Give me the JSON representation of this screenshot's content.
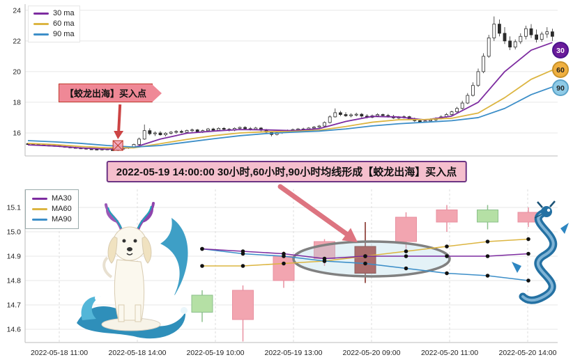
{
  "banner": {
    "text": "2022-05-19 14:00:00 30小时,60小时,90小时均线形成【蛟龙出海】买入点",
    "bg": "#f5bfcd",
    "border": "#6c3483",
    "arrow_color": "#dd7480"
  },
  "chart_data": [
    {
      "type": "candlestick",
      "title": "",
      "xlabel": "",
      "ylabel": "",
      "ylim": [
        14.5,
        24.4
      ],
      "y_ticks": [
        24,
        22,
        20,
        18,
        16
      ],
      "legend": [
        {
          "label": "30 ma",
          "color": "#7d2ca0"
        },
        {
          "label": "60 ma",
          "color": "#dcb541"
        },
        {
          "label": "90 ma",
          "color": "#3c8ec8"
        }
      ],
      "badges": [
        {
          "label": "30",
          "bg": "#6a1b9a",
          "fg": "#ffffff",
          "border": "#4a148c"
        },
        {
          "label": "60",
          "bg": "#f0b040",
          "fg": "#222222",
          "border": "#c8922a"
        },
        {
          "label": "90",
          "bg": "#8ecae6",
          "fg": "#222222",
          "border": "#5ba3c9"
        }
      ],
      "callout": {
        "label": "【蛟龙出海】买入点",
        "bg": "#ef8896",
        "border": "#c0392b",
        "arrow_color": "#cc4444"
      },
      "buy_marker_index": 17,
      "colors": {
        "ma30": "#7d2ca0",
        "ma60": "#dcb541",
        "ma90": "#3c8ec8",
        "candle": "#2b2b2b"
      },
      "ma_step": 5,
      "ma30": [
        15.22,
        15.15,
        15.02,
        14.94,
        15.05,
        15.6,
        15.98,
        16.12,
        16.22,
        16.2,
        16.15,
        16.28,
        16.75,
        17.08,
        17.04,
        16.85,
        17.1,
        18.0,
        20.0,
        21.4,
        21.9
      ],
      "ma60": [
        15.32,
        15.24,
        15.12,
        15.03,
        15.03,
        15.3,
        15.58,
        15.82,
        16.0,
        16.08,
        16.1,
        16.18,
        16.42,
        16.7,
        16.86,
        16.88,
        16.96,
        17.3,
        18.3,
        19.5,
        20.1
      ],
      "ma90": [
        15.5,
        15.42,
        15.32,
        15.18,
        15.08,
        15.18,
        15.4,
        15.62,
        15.82,
        15.96,
        16.05,
        16.12,
        16.26,
        16.46,
        16.6,
        16.7,
        16.8,
        17.0,
        17.6,
        18.5,
        19.0
      ],
      "candles": [
        [
          15.3,
          15.36,
          15.24,
          15.28
        ],
        [
          15.28,
          15.33,
          15.21,
          15.25
        ],
        [
          15.25,
          15.3,
          15.18,
          15.22
        ],
        [
          15.22,
          15.28,
          15.16,
          15.2
        ],
        [
          15.2,
          15.24,
          15.12,
          15.15
        ],
        [
          15.15,
          15.22,
          15.1,
          15.18
        ],
        [
          15.18,
          15.21,
          15.08,
          15.12
        ],
        [
          15.12,
          15.16,
          15.04,
          15.08
        ],
        [
          15.08,
          15.14,
          15.02,
          15.05
        ],
        [
          15.05,
          15.1,
          14.98,
          15.02
        ],
        [
          15.02,
          15.08,
          14.96,
          15.0
        ],
        [
          15.0,
          15.04,
          14.92,
          14.96
        ],
        [
          14.96,
          15.02,
          14.9,
          14.94
        ],
        [
          14.94,
          15.0,
          14.88,
          14.92
        ],
        [
          14.92,
          14.98,
          14.86,
          14.95
        ],
        [
          14.95,
          15.0,
          14.88,
          14.9
        ],
        [
          14.9,
          14.96,
          14.84,
          14.88
        ],
        [
          14.88,
          14.98,
          14.82,
          14.95
        ],
        [
          14.95,
          15.06,
          14.9,
          15.02
        ],
        [
          15.02,
          15.12,
          14.96,
          15.08
        ],
        [
          15.08,
          15.3,
          15.02,
          15.25
        ],
        [
          15.25,
          15.7,
          15.2,
          15.6
        ],
        [
          15.6,
          16.55,
          15.55,
          16.15
        ],
        [
          16.15,
          16.3,
          15.85,
          15.95
        ],
        [
          15.95,
          16.1,
          15.8,
          16.0
        ],
        [
          16.0,
          16.12,
          15.82,
          15.88
        ],
        [
          15.88,
          16.05,
          15.78,
          15.98
        ],
        [
          15.98,
          16.12,
          15.9,
          16.05
        ],
        [
          16.05,
          16.18,
          15.95,
          16.1
        ],
        [
          16.1,
          16.2,
          15.98,
          16.04
        ],
        [
          16.04,
          16.22,
          15.98,
          16.16
        ],
        [
          16.16,
          16.28,
          16.06,
          16.2
        ],
        [
          16.2,
          16.26,
          16.02,
          16.08
        ],
        [
          16.08,
          16.22,
          16.0,
          16.15
        ],
        [
          16.15,
          16.32,
          16.08,
          16.26
        ],
        [
          16.26,
          16.34,
          16.12,
          16.18
        ],
        [
          16.18,
          16.36,
          16.12,
          16.3
        ],
        [
          16.3,
          16.38,
          16.18,
          16.24
        ],
        [
          16.24,
          16.32,
          16.1,
          16.18
        ],
        [
          16.18,
          16.36,
          16.12,
          16.3
        ],
        [
          16.3,
          16.42,
          16.22,
          16.36
        ],
        [
          16.36,
          16.44,
          16.2,
          16.28
        ],
        [
          16.28,
          16.38,
          16.16,
          16.24
        ],
        [
          16.24,
          16.4,
          16.18,
          16.32
        ],
        [
          16.32,
          16.38,
          16.1,
          16.18
        ],
        [
          16.18,
          16.26,
          15.96,
          16.05
        ],
        [
          16.05,
          16.12,
          15.78,
          15.9
        ],
        [
          15.9,
          16.08,
          15.84,
          16.02
        ],
        [
          16.02,
          16.16,
          15.94,
          16.1
        ],
        [
          16.1,
          16.22,
          16.02,
          16.15
        ],
        [
          16.15,
          16.28,
          16.08,
          16.22
        ],
        [
          16.22,
          16.32,
          16.12,
          16.26
        ],
        [
          16.26,
          16.34,
          16.14,
          16.2
        ],
        [
          16.2,
          16.38,
          16.14,
          16.32
        ],
        [
          16.32,
          16.44,
          16.24,
          16.38
        ],
        [
          16.38,
          16.52,
          16.3,
          16.45
        ],
        [
          16.45,
          16.75,
          16.4,
          16.68
        ],
        [
          16.68,
          17.15,
          16.62,
          17.05
        ],
        [
          17.05,
          17.6,
          17.0,
          17.32
        ],
        [
          17.32,
          17.44,
          17.1,
          17.2
        ],
        [
          17.2,
          17.35,
          17.05,
          17.12
        ],
        [
          17.12,
          17.28,
          17.02,
          17.18
        ],
        [
          17.18,
          17.32,
          17.08,
          17.22
        ],
        [
          17.22,
          17.3,
          17.0,
          17.1
        ],
        [
          17.1,
          17.22,
          16.95,
          17.02
        ],
        [
          17.02,
          17.2,
          16.96,
          17.12
        ],
        [
          17.12,
          17.28,
          17.04,
          17.2
        ],
        [
          17.2,
          17.26,
          17.05,
          17.14
        ],
        [
          17.14,
          17.24,
          17.0,
          17.08
        ],
        [
          17.08,
          17.18,
          16.92,
          16.98
        ],
        [
          16.98,
          17.1,
          16.88,
          17.02
        ],
        [
          17.02,
          17.14,
          16.94,
          17.06
        ],
        [
          17.06,
          17.12,
          16.85,
          16.92
        ],
        [
          16.92,
          17.0,
          16.72,
          16.8
        ],
        [
          16.8,
          16.92,
          16.64,
          16.72
        ],
        [
          16.72,
          16.88,
          16.66,
          16.78
        ],
        [
          16.78,
          16.94,
          16.7,
          16.85
        ],
        [
          16.85,
          17.02,
          16.78,
          16.95
        ],
        [
          16.95,
          17.15,
          16.88,
          17.05
        ],
        [
          17.05,
          17.3,
          17.0,
          17.2
        ],
        [
          17.2,
          17.45,
          17.12,
          17.38
        ],
        [
          17.38,
          17.7,
          17.3,
          17.6
        ],
        [
          17.6,
          18.1,
          17.52,
          17.95
        ],
        [
          17.95,
          18.6,
          17.88,
          18.45
        ],
        [
          18.45,
          19.3,
          18.38,
          19.1
        ],
        [
          19.1,
          20.2,
          19.0,
          20.0
        ],
        [
          20.0,
          21.2,
          19.9,
          21.0
        ],
        [
          21.0,
          22.4,
          20.9,
          22.2
        ],
        [
          22.2,
          23.6,
          22.0,
          23.1
        ],
        [
          23.1,
          23.4,
          22.3,
          22.5
        ],
        [
          22.5,
          22.9,
          21.8,
          22.0
        ],
        [
          22.0,
          22.3,
          21.4,
          21.6
        ],
        [
          21.6,
          22.1,
          21.45,
          21.95
        ],
        [
          21.95,
          22.5,
          21.8,
          22.3
        ],
        [
          22.3,
          23.0,
          22.1,
          22.8
        ],
        [
          22.8,
          23.1,
          22.2,
          22.4
        ],
        [
          22.4,
          22.75,
          21.9,
          22.1
        ],
        [
          22.1,
          22.6,
          21.95,
          22.45
        ],
        [
          22.45,
          22.9,
          22.2,
          22.6
        ],
        [
          22.6,
          22.8,
          22.0,
          22.3
        ]
      ]
    },
    {
      "type": "candlestick",
      "title": "",
      "xlabel": "",
      "ylabel": "",
      "ylim": [
        14.55,
        15.15
      ],
      "y_ticks": [
        "15.1",
        "15.0",
        "14.9",
        "14.8",
        "14.7",
        "14.6"
      ],
      "x_labels": [
        "2022-05-18 11:00",
        "2022-05-18 14:00",
        "2022-05-19 10:00",
        "2022-05-19 13:00",
        "2022-05-20 09:00",
        "2022-05-20 11:00",
        "2022-05-20 14:00"
      ],
      "legend": [
        {
          "label": "MA30",
          "color": "#7d2ca0"
        },
        {
          "label": "MA60",
          "color": "#dcb541"
        },
        {
          "label": "MA90",
          "color": "#3c8ec8"
        }
      ],
      "colors": {
        "up": "#f2a5b0",
        "up_stroke": "#e890a0",
        "down": "#b5e0a5",
        "down_stroke": "#8cc08c",
        "highlight": "#ab3a33",
        "ma30": "#7d2ca0",
        "ma60": "#dcb541",
        "ma90": "#3c8ec8",
        "ellipse_stroke": "#808080",
        "ellipse_fill": "#aad7e6"
      },
      "candles": [
        {
          "o": 14.74,
          "h": 14.76,
          "l": 14.63,
          "c": 14.67,
          "kind": "down"
        },
        {
          "o": 14.64,
          "h": 14.78,
          "l": 14.55,
          "c": 14.76,
          "kind": "up"
        },
        {
          "o": 14.8,
          "h": 14.92,
          "l": 14.77,
          "c": 14.9,
          "kind": "up"
        },
        {
          "o": 14.89,
          "h": 14.97,
          "l": 14.86,
          "c": 14.96,
          "kind": "up"
        },
        {
          "o": 14.83,
          "h": 15.04,
          "l": 14.79,
          "c": 14.94,
          "kind": "highlight"
        },
        {
          "o": 14.96,
          "h": 15.08,
          "l": 14.93,
          "c": 15.06,
          "kind": "up"
        },
        {
          "o": 15.04,
          "h": 15.11,
          "l": 15.0,
          "c": 15.09,
          "kind": "up"
        },
        {
          "o": 15.09,
          "h": 15.11,
          "l": 15.01,
          "c": 15.04,
          "kind": "down"
        },
        {
          "o": 15.04,
          "h": 15.1,
          "l": 15.02,
          "c": 15.08,
          "kind": "up"
        }
      ],
      "ma30": [
        14.93,
        14.92,
        14.91,
        14.89,
        14.9,
        14.9,
        14.9,
        14.9,
        14.91
      ],
      "ma60": [
        14.86,
        14.86,
        14.87,
        14.88,
        14.9,
        14.92,
        14.94,
        14.96,
        14.97
      ],
      "ma90": [
        14.93,
        14.91,
        14.9,
        14.88,
        14.87,
        14.85,
        14.83,
        14.82,
        14.8
      ],
      "highlight_ellipse": true
    }
  ]
}
